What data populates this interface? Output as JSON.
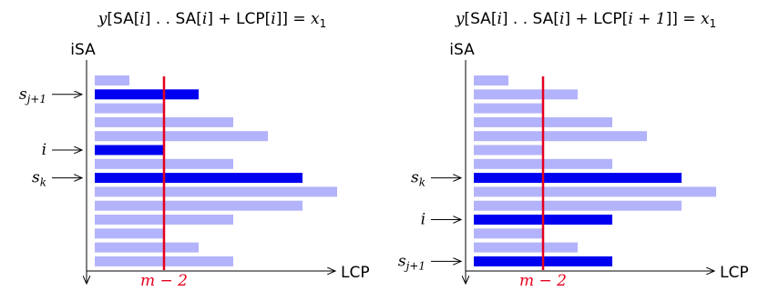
{
  "panels": [
    {
      "formula": {
        "lhs": "y",
        "sa1": "SA",
        "i1": "i",
        "sa2": "SA",
        "i2": "i",
        "plus": "+",
        "lcp": "LCP",
        "idx": "i",
        "rhs": "x",
        "sub": "1"
      },
      "y_axis_label": "iSA",
      "x_axis_label": "LCP",
      "threshold_label": "m − 2",
      "threshold_value": 2,
      "bars": [
        {
          "length": 1.0,
          "highlight": false
        },
        {
          "length": 3.0,
          "highlight": true
        },
        {
          "length": 2.0,
          "highlight": false
        },
        {
          "length": 4.0,
          "highlight": false
        },
        {
          "length": 5.0,
          "highlight": false
        },
        {
          "length": 2.0,
          "highlight": true
        },
        {
          "length": 4.0,
          "highlight": false
        },
        {
          "length": 6.0,
          "highlight": true
        },
        {
          "length": 7.0,
          "highlight": false
        },
        {
          "length": 6.0,
          "highlight": false
        },
        {
          "length": 4.0,
          "highlight": false
        },
        {
          "length": 2.0,
          "highlight": false
        },
        {
          "length": 3.0,
          "highlight": false
        },
        {
          "length": 4.0,
          "highlight": false
        }
      ],
      "row_markers": [
        {
          "row": 1,
          "base": "s",
          "sub": "j+1"
        },
        {
          "row": 5,
          "base": "i",
          "sub": ""
        },
        {
          "row": 7,
          "base": "s",
          "sub": "k"
        }
      ]
    },
    {
      "formula": {
        "lhs": "y",
        "sa1": "SA",
        "i1": "i",
        "sa2": "SA",
        "i2": "i",
        "plus": "+",
        "lcp": "LCP",
        "idx": "i + 1",
        "rhs": "x",
        "sub": "1"
      },
      "y_axis_label": "iSA",
      "x_axis_label": "LCP",
      "threshold_label": "m − 2",
      "threshold_value": 2,
      "bars": [
        {
          "length": 1.0,
          "highlight": false
        },
        {
          "length": 3.0,
          "highlight": false
        },
        {
          "length": 2.0,
          "highlight": false
        },
        {
          "length": 4.0,
          "highlight": false
        },
        {
          "length": 5.0,
          "highlight": false
        },
        {
          "length": 2.0,
          "highlight": false
        },
        {
          "length": 4.0,
          "highlight": false
        },
        {
          "length": 6.0,
          "highlight": true
        },
        {
          "length": 7.0,
          "highlight": false
        },
        {
          "length": 6.0,
          "highlight": false
        },
        {
          "length": 4.0,
          "highlight": true
        },
        {
          "length": 2.0,
          "highlight": false
        },
        {
          "length": 3.0,
          "highlight": false
        },
        {
          "length": 4.0,
          "highlight": true
        }
      ],
      "row_markers": [
        {
          "row": 7,
          "base": "s",
          "sub": "k"
        },
        {
          "row": 10,
          "base": "i",
          "sub": ""
        },
        {
          "row": 13,
          "base": "s",
          "sub": "j+1"
        }
      ]
    }
  ],
  "colors": {
    "bar_light": "#b3b3fb",
    "bar_dark": "#0000f0",
    "threshold": "#e6001e",
    "axis": "#000000"
  }
}
